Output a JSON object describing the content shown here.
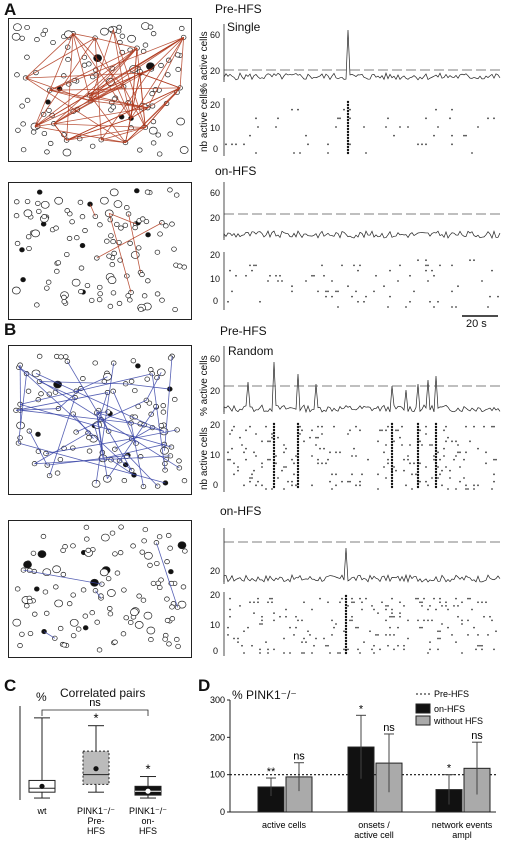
{
  "panels": {
    "A": {
      "letter": "A",
      "pre_label": "Pre-HFS",
      "on_label": "on-HFS",
      "mode_label": "Single",
      "ylabel_top": "% active cells",
      "ylabel_bottom": "nb active cells",
      "pre_ticks_top": [
        "60",
        "20"
      ],
      "pre_ticks_bottom": [
        "20",
        "10",
        "0"
      ],
      "on_ticks_top": [
        "60",
        "20"
      ],
      "on_ticks_bottom": [
        "20",
        "10",
        "0"
      ],
      "scalebar": "20 s"
    },
    "B": {
      "letter": "B",
      "pre_label": "Pre-HFS",
      "on_label": "on-HFS",
      "mode_label": "Random",
      "ylabel_top": "% active cells",
      "ylabel_bottom": "nb active cells",
      "pre_ticks_top": [
        "60",
        "20"
      ],
      "pre_ticks_bottom": [
        "20",
        "10",
        "0"
      ],
      "on_ticks_top": [
        "20"
      ],
      "on_ticks_bottom": [
        "20",
        "10",
        "0"
      ]
    }
  },
  "chart_data": [
    {
      "type": "box",
      "panel": "C",
      "title": "Correlated pairs",
      "ylabel": "%",
      "categories": [
        "wt",
        "PINK1⁻/⁻ Pre-HFS",
        "PINK1⁻/⁻ on-HFS"
      ],
      "category_lines": [
        [
          "wt"
        ],
        [
          "PINK1⁻/⁻",
          "Pre-",
          "HFS"
        ],
        [
          "PINK1⁻/⁻",
          "on-",
          "HFS"
        ]
      ],
      "boxes": [
        {
          "min": 1,
          "q1": 4,
          "median": 6,
          "q3": 10,
          "max": 42,
          "mean": 7
        },
        {
          "min": 4,
          "q1": 8,
          "median": 13,
          "q3": 25,
          "max": 38,
          "mean": 16
        },
        {
          "min": 1,
          "q1": 2.5,
          "median": 4.5,
          "q3": 7,
          "max": 12,
          "mean": 4.5
        }
      ],
      "ylim": [
        0,
        45
      ],
      "significance": [
        "",
        "*",
        "*"
      ],
      "bracket_label": "ns",
      "colors": [
        "#ffffff",
        "#bbbbbb",
        "#111111"
      ]
    },
    {
      "type": "bar",
      "panel": "D",
      "ylabel": "% PINK1⁻/⁻",
      "categories": [
        "active cells",
        "onsets / active cell",
        "network events ampl"
      ],
      "category_lines": [
        [
          "active cells"
        ],
        [
          "onsets /",
          "active cell"
        ],
        [
          "network events",
          "ampl"
        ]
      ],
      "series": [
        {
          "name": "on-HFS",
          "values": [
            67,
            174,
            60
          ],
          "errors": [
            24,
            85,
            40
          ],
          "color": "#111111",
          "significance": [
            "**",
            "*",
            "*"
          ]
        },
        {
          "name": "without HFS",
          "values": [
            94,
            131,
            117
          ],
          "errors": [
            38,
            78,
            70
          ],
          "color": "#aaaaaa",
          "significance": [
            "ns",
            "ns",
            "ns"
          ]
        }
      ],
      "reference": {
        "name": "Pre-HFS",
        "value": 100
      },
      "yticks": [
        "0",
        "100",
        "200",
        "300"
      ],
      "ylim": [
        0,
        300
      ]
    }
  ]
}
